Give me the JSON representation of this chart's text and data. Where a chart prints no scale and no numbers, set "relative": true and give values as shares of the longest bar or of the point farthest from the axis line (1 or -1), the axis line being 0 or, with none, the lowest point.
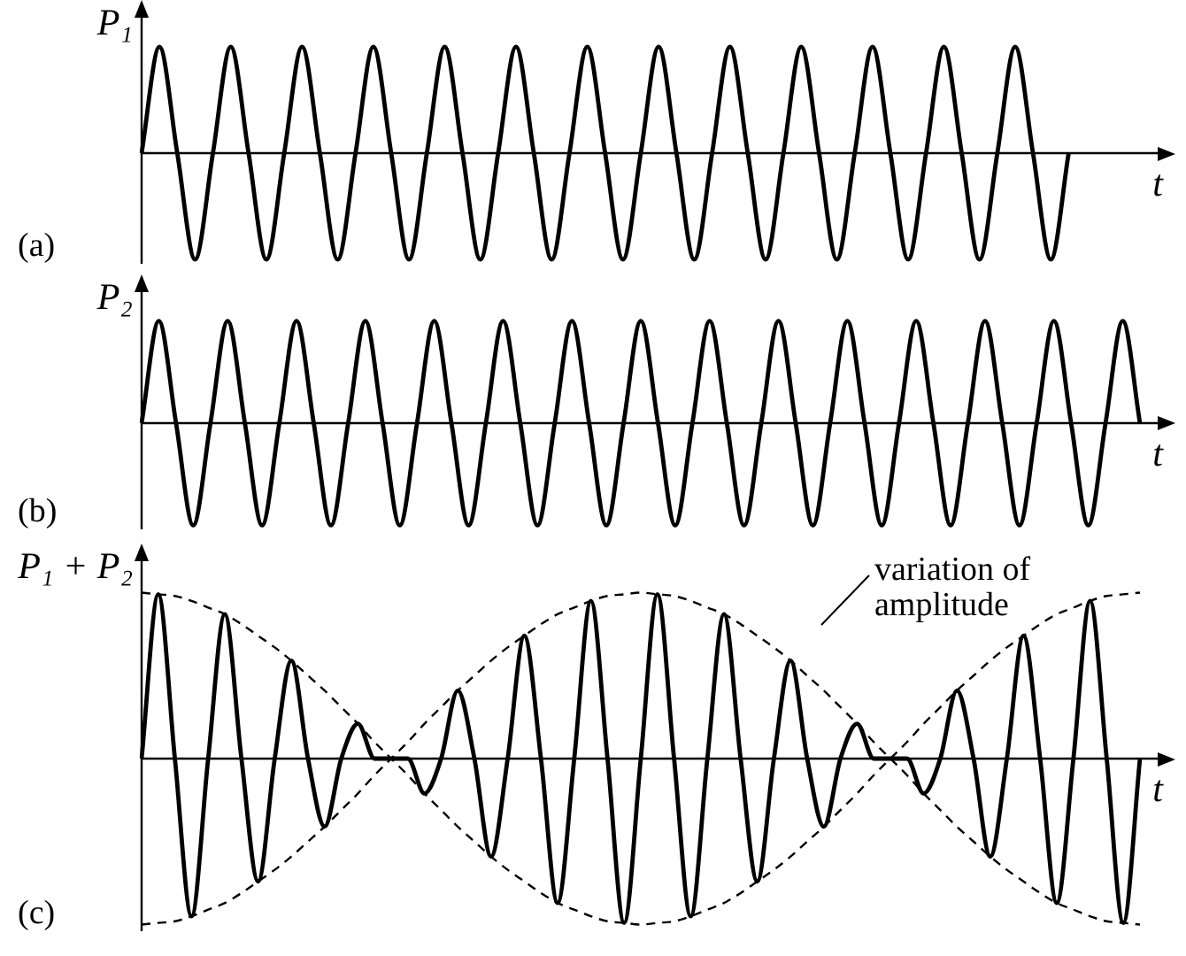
{
  "chart_data": [
    {
      "type": "line",
      "relative": true,
      "ylabel": "P₁",
      "xlabel": "t",
      "annotations": [
        "(a)"
      ],
      "marker": "none",
      "line_style": "solid",
      "categories": [
        null,
        null,
        null,
        null,
        null,
        null,
        null,
        null,
        null,
        null,
        null,
        null,
        null,
        null,
        null,
        null,
        null,
        null,
        null,
        null,
        null,
        null,
        null,
        null,
        null,
        null,
        null,
        null,
        null,
        null,
        null,
        null,
        null,
        null,
        null,
        null,
        null,
        null,
        null,
        null,
        null,
        null,
        null,
        null,
        null,
        null,
        null,
        null,
        null,
        null,
        null,
        null,
        null,
        null,
        null,
        null,
        null
      ],
      "series": [
        {
          "color": "#000000",
          "values": [
            0,
            1,
            0,
            -1,
            0,
            1,
            0,
            -1,
            0,
            1,
            0,
            -1,
            0,
            1,
            0,
            -1,
            0,
            1,
            0,
            -1,
            0,
            1,
            0,
            -1,
            0,
            1,
            0,
            -1,
            0,
            1,
            0,
            -1,
            0,
            1,
            0,
            -1,
            0,
            1,
            0,
            -1,
            0,
            1,
            0,
            -1,
            0,
            1,
            0,
            -1,
            0,
            1,
            0,
            -1,
            0,
            null,
            null,
            null,
            null
          ]
        }
      ]
    },
    {
      "type": "line",
      "relative": true,
      "ylabel": "P₂",
      "xlabel": "t",
      "annotations": [
        "(b)"
      ],
      "marker": "none",
      "line_style": "solid",
      "categories": [
        null,
        null,
        null,
        null,
        null,
        null,
        null,
        null,
        null,
        null,
        null,
        null,
        null,
        null,
        null,
        null,
        null,
        null,
        null,
        null,
        null,
        null,
        null,
        null,
        null,
        null,
        null,
        null,
        null,
        null,
        null,
        null,
        null,
        null,
        null,
        null,
        null,
        null,
        null,
        null,
        null,
        null,
        null,
        null,
        null,
        null,
        null,
        null,
        null,
        null,
        null,
        null,
        null,
        null,
        null,
        null,
        null,
        null,
        null
      ],
      "series": [
        {
          "color": "#000000",
          "values": [
            0,
            1,
            0,
            -1,
            0,
            1,
            0,
            -1,
            0,
            1,
            0,
            -1,
            0,
            1,
            0,
            -1,
            0,
            1,
            0,
            -1,
            0,
            1,
            0,
            -1,
            0,
            1,
            0,
            -1,
            0,
            1,
            0,
            -1,
            0,
            1,
            0,
            -1,
            0,
            1,
            0,
            -1,
            0,
            1,
            0,
            -1,
            0,
            1,
            0,
            -1,
            0,
            1,
            0,
            -1,
            0,
            1,
            0,
            -1,
            0,
            1,
            0
          ]
        }
      ]
    },
    {
      "type": "line",
      "relative": true,
      "ylabel": "P₁ + P₂",
      "xlabel": "t",
      "annotations": [
        "(c)",
        "variation of amplitude"
      ],
      "marker": "none",
      "line_style": "solid",
      "categories": [
        null,
        null,
        null,
        null,
        null,
        null,
        null,
        null,
        null,
        null,
        null,
        null,
        null,
        null,
        null,
        null,
        null,
        null,
        null,
        null,
        null,
        null,
        null,
        null,
        null,
        null,
        null,
        null,
        null,
        null,
        null,
        null,
        null,
        null,
        null,
        null,
        null,
        null,
        null,
        null,
        null,
        null,
        null,
        null,
        null,
        null,
        null,
        null,
        null,
        null,
        null,
        null,
        null,
        null,
        null,
        null,
        null,
        null,
        null,
        null,
        null
      ],
      "series": [
        {
          "color": "#000000",
          "line_style": "dashed",
          "values": [
            1,
            0.99,
            0.98,
            0.95,
            0.91,
            0.87,
            0.81,
            0.74,
            0.67,
            0.59,
            0.5,
            0.41,
            0.31,
            0.21,
            0.1,
            0,
            -0.1,
            -0.21,
            -0.31,
            -0.41,
            -0.5,
            -0.59,
            -0.67,
            -0.74,
            -0.81,
            -0.87,
            -0.91,
            -0.95,
            -0.98,
            -0.99,
            -1,
            -0.99,
            -0.98,
            -0.95,
            -0.91,
            -0.87,
            -0.81,
            -0.74,
            -0.67,
            -0.59,
            -0.5,
            -0.41,
            -0.31,
            -0.21,
            -0.1,
            0,
            0.1,
            0.21,
            0.31,
            0.41,
            0.5,
            0.59,
            0.67,
            0.74,
            0.81,
            0.87,
            0.91,
            0.95,
            0.98,
            0.99,
            1
          ]
        },
        {
          "color": "#000000",
          "line_style": "dashed",
          "values": [
            -1,
            -0.99,
            -0.98,
            -0.95,
            -0.91,
            -0.87,
            -0.81,
            -0.74,
            -0.67,
            -0.59,
            -0.5,
            -0.41,
            -0.31,
            -0.21,
            -0.1,
            0,
            0.1,
            0.21,
            0.31,
            0.41,
            0.5,
            0.59,
            0.67,
            0.74,
            0.81,
            0.87,
            0.91,
            0.95,
            0.98,
            0.99,
            1,
            0.99,
            0.98,
            0.95,
            0.91,
            0.87,
            0.81,
            0.74,
            0.67,
            0.59,
            0.5,
            0.41,
            0.31,
            0.21,
            0.1,
            0,
            -0.1,
            -0.21,
            -0.31,
            -0.41,
            -0.5,
            -0.59,
            -0.67,
            -0.74,
            -0.81,
            -0.87,
            -0.91,
            -0.95,
            -0.98,
            -0.99,
            -1
          ]
        },
        {
          "color": "#000000",
          "values": [
            0,
            0.99,
            0,
            -0.95,
            0,
            0.87,
            0,
            -0.74,
            0,
            0.59,
            0,
            -0.41,
            0,
            0.21,
            0,
            0,
            0,
            -0.21,
            0,
            0.41,
            0,
            -0.59,
            0,
            0.74,
            0,
            -0.87,
            0,
            0.95,
            0,
            -0.99,
            0,
            0.99,
            0,
            -0.95,
            0,
            0.87,
            0,
            -0.74,
            0,
            0.59,
            0,
            -0.41,
            0,
            0.21,
            0,
            0,
            0,
            -0.21,
            0,
            0.41,
            0,
            -0.59,
            0,
            0.74,
            0,
            -0.87,
            0,
            0.95,
            0,
            -0.99,
            0
          ]
        }
      ]
    }
  ]
}
